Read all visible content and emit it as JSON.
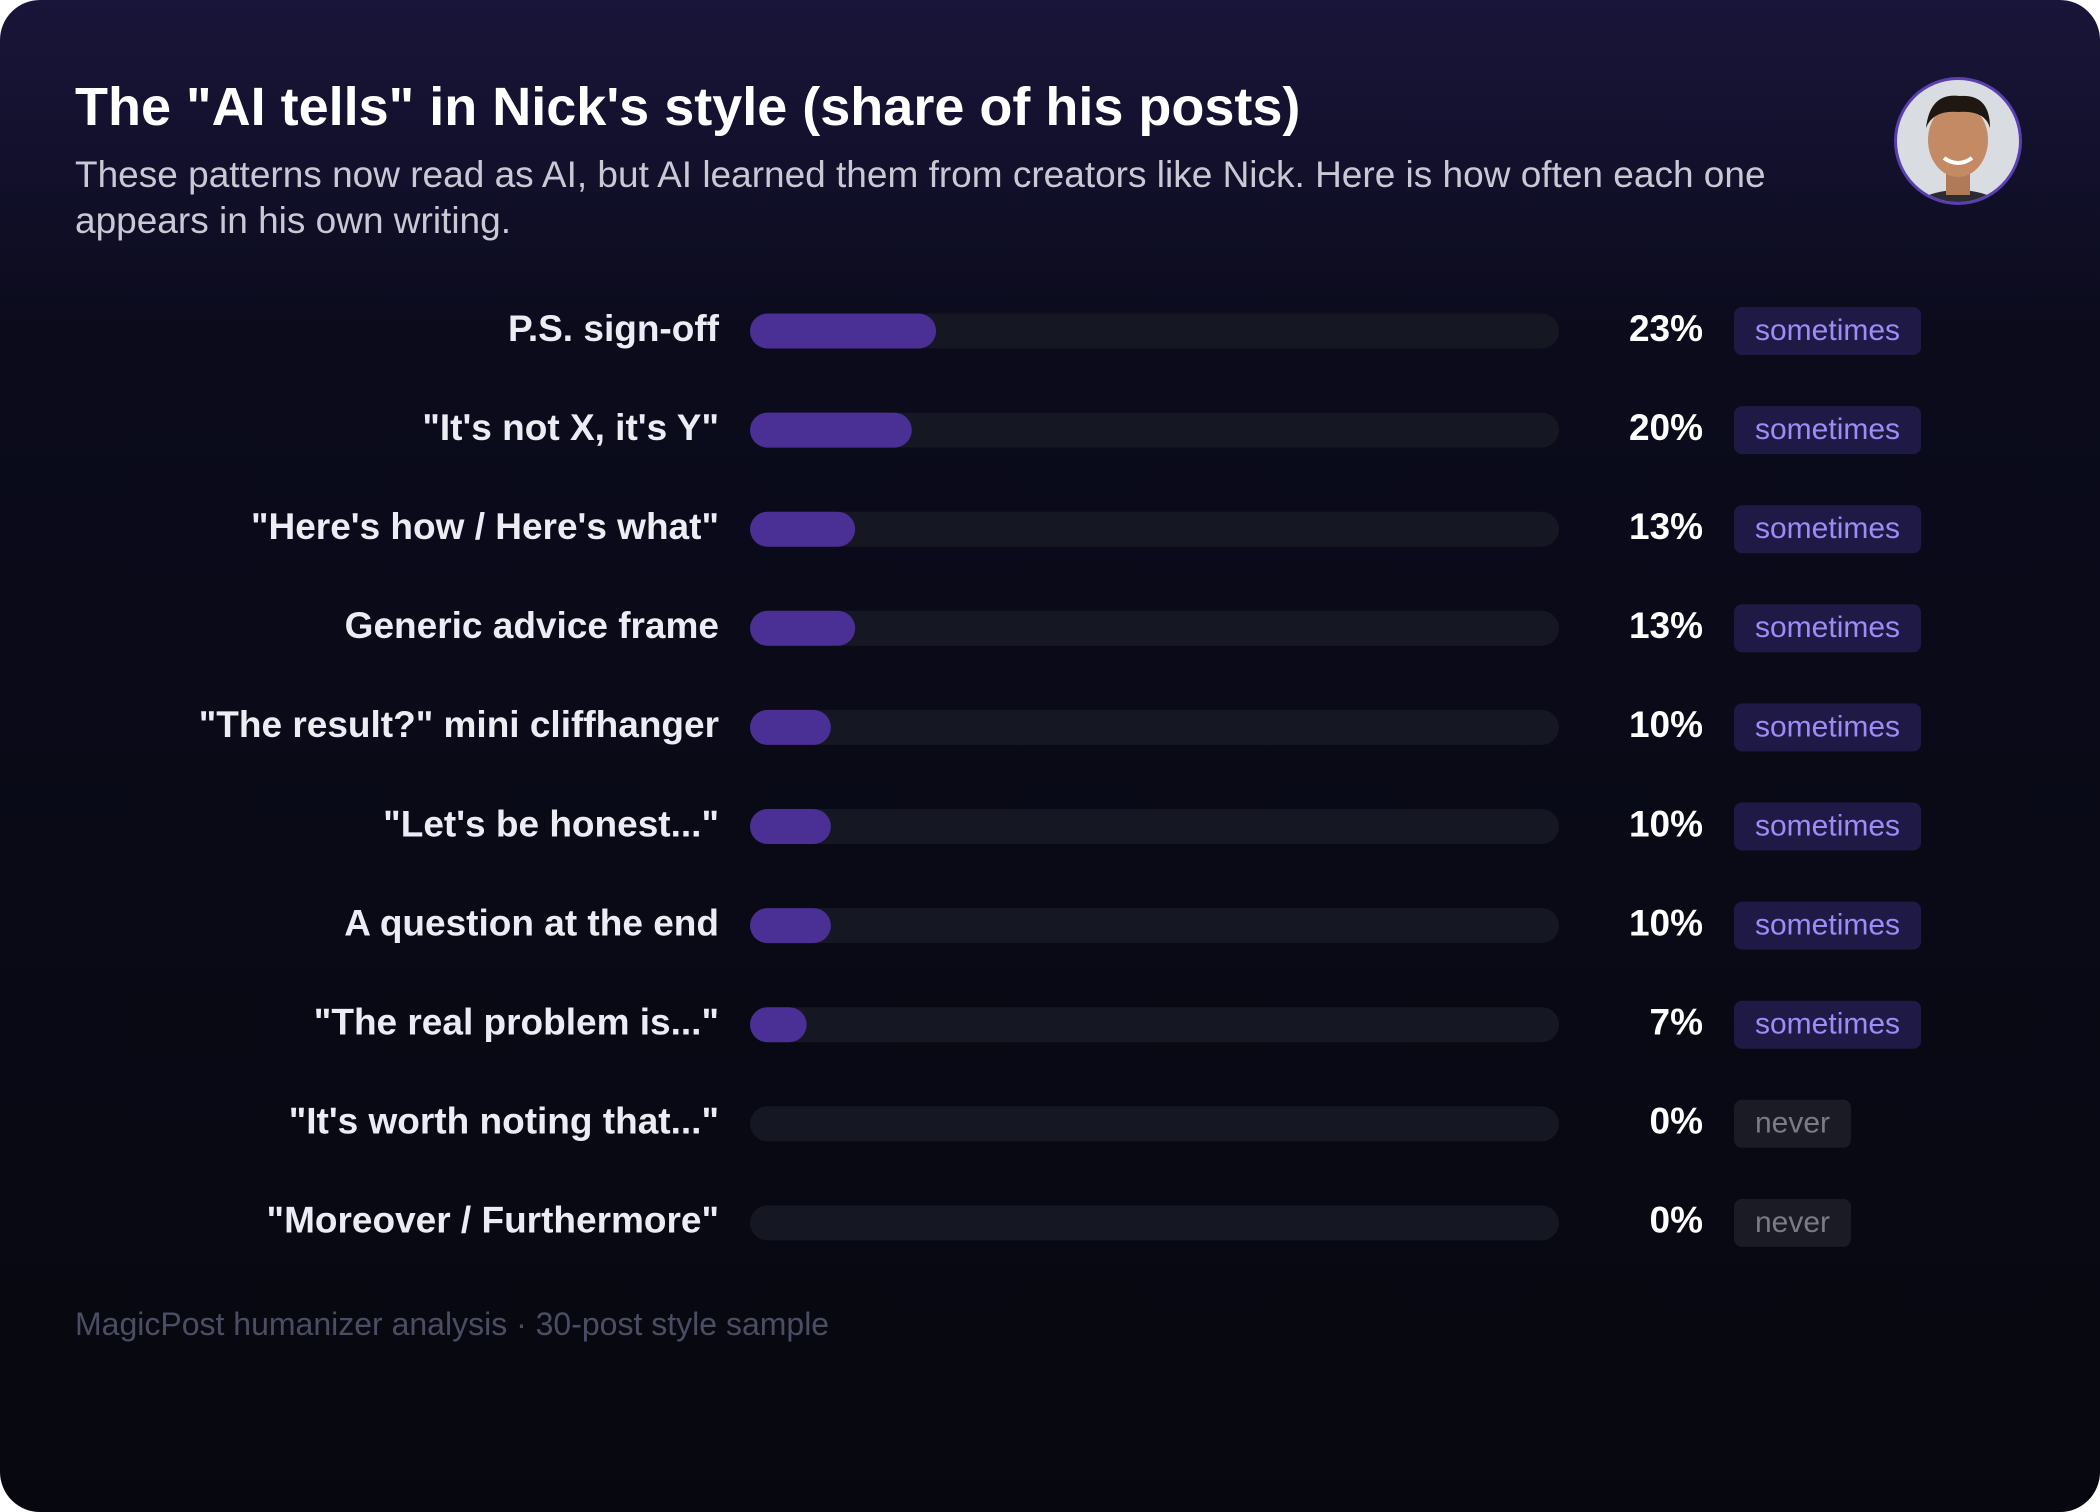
{
  "chart_data": {
    "type": "bar",
    "orientation": "horizontal",
    "title": "The \"AI tells\" in Nick's style (share of his posts)",
    "subtitle": "These patterns now read as AI, but AI learned them from creators like Nick. Here is how often each one appears in his own writing.",
    "categories": [
      "P.S. sign-off",
      "\"It's not X, it's Y\"",
      "\"Here's how / Here's what\"",
      "Generic advice frame",
      "\"The result?\" mini cliffhanger",
      "\"Let's be honest...\"",
      "A question at the end",
      "\"The real problem is...\"",
      "\"It's worth noting that...\"",
      "\"Moreover / Furthermore\""
    ],
    "values": [
      23,
      20,
      13,
      13,
      10,
      10,
      10,
      7,
      0,
      0
    ],
    "value_labels": [
      "23%",
      "20%",
      "13%",
      "13%",
      "10%",
      "10%",
      "10%",
      "7%",
      "0%",
      "0%"
    ],
    "tags": [
      "sometimes",
      "sometimes",
      "sometimes",
      "sometimes",
      "sometimes",
      "sometimes",
      "sometimes",
      "sometimes",
      "never",
      "never"
    ],
    "color": "#4a2f94",
    "xlim": [
      0,
      100
    ],
    "footer": "MagicPost humanizer analysis · 30-post style sample"
  }
}
